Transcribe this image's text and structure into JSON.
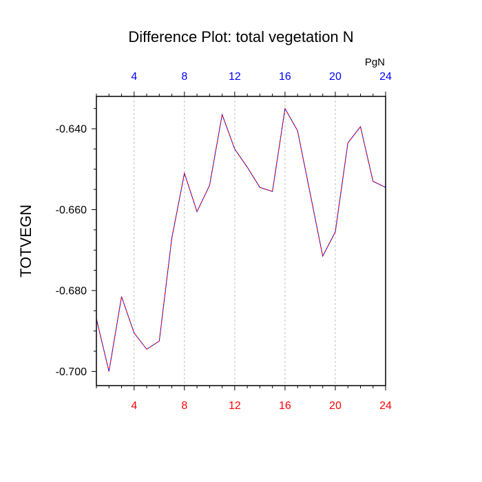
{
  "chart_data": {
    "type": "line",
    "title": "Difference Plot: total vegetation N",
    "ylabel": "TOTVEGN",
    "top_axis_units": "PgN",
    "xlim": [
      1,
      24
    ],
    "ylim": [
      -0.7035,
      -0.632
    ],
    "x_ticks": [
      4,
      8,
      12,
      16,
      20,
      24
    ],
    "y_ticks": [
      -0.64,
      -0.66,
      -0.68,
      -0.7
    ],
    "y_tick_labels": [
      "-0.640",
      "-0.660",
      "-0.680",
      "-0.700"
    ],
    "grid": "vertical dashed at x ticks",
    "colors": {
      "bottom_tick_labels": "#ff0000",
      "top_tick_labels": "#0000ff",
      "line_a": "#0000ff",
      "line_b": "#ff0000"
    },
    "series": [
      {
        "x": [
          1,
          2,
          3,
          4,
          5,
          6,
          7,
          8,
          9,
          10,
          11,
          12,
          13,
          14,
          15,
          16,
          17,
          18,
          19,
          20,
          21,
          22,
          23,
          24
        ],
        "y": [
          -0.687,
          -0.7,
          -0.6815,
          -0.6905,
          -0.6945,
          -0.6925,
          -0.667,
          -0.651,
          -0.6605,
          -0.654,
          -0.6365,
          -0.645,
          -0.6495,
          -0.6545,
          -0.6555,
          -0.635,
          -0.6405,
          -0.656,
          -0.6715,
          -0.6655,
          -0.6435,
          -0.6395,
          -0.653,
          -0.6545
        ]
      }
    ]
  }
}
